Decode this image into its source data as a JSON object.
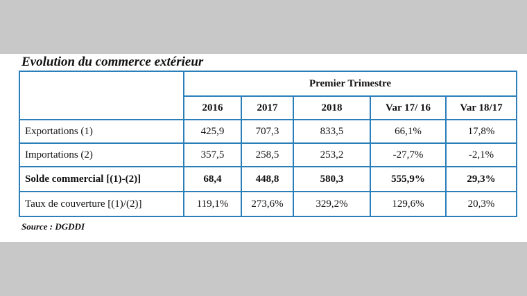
{
  "title": "Evolution du commerce extérieur",
  "table": {
    "group_header": "Premier Trimestre",
    "columns": [
      "2016",
      "2017",
      "2018",
      "Var 17/ 16",
      "Var 18/17"
    ],
    "rows": [
      {
        "label": "Exportations (1)",
        "values": [
          "425,9",
          "707,3",
          "833,5",
          "66,1%",
          "17,8%"
        ],
        "bold": false
      },
      {
        "label": "Importations (2)",
        "values": [
          "357,5",
          "258,5",
          "253,2",
          "-27,7%",
          "-2,1%"
        ],
        "bold": false
      },
      {
        "label": "Solde commercial [(1)-(2)]",
        "values": [
          "68,4",
          "448,8",
          "580,3",
          "555,9%",
          "29,3%"
        ],
        "bold": true
      },
      {
        "label": "Taux de couverture [(1)/(2)]",
        "values": [
          "119,1%",
          "273,6%",
          "329,2%",
          "129,6%",
          "20,3%"
        ],
        "bold": false
      }
    ]
  },
  "source": "Source : DGDDI",
  "colors": {
    "border": "#2b7fb8",
    "background": "#c8c8c8",
    "panel": "#ffffff"
  }
}
